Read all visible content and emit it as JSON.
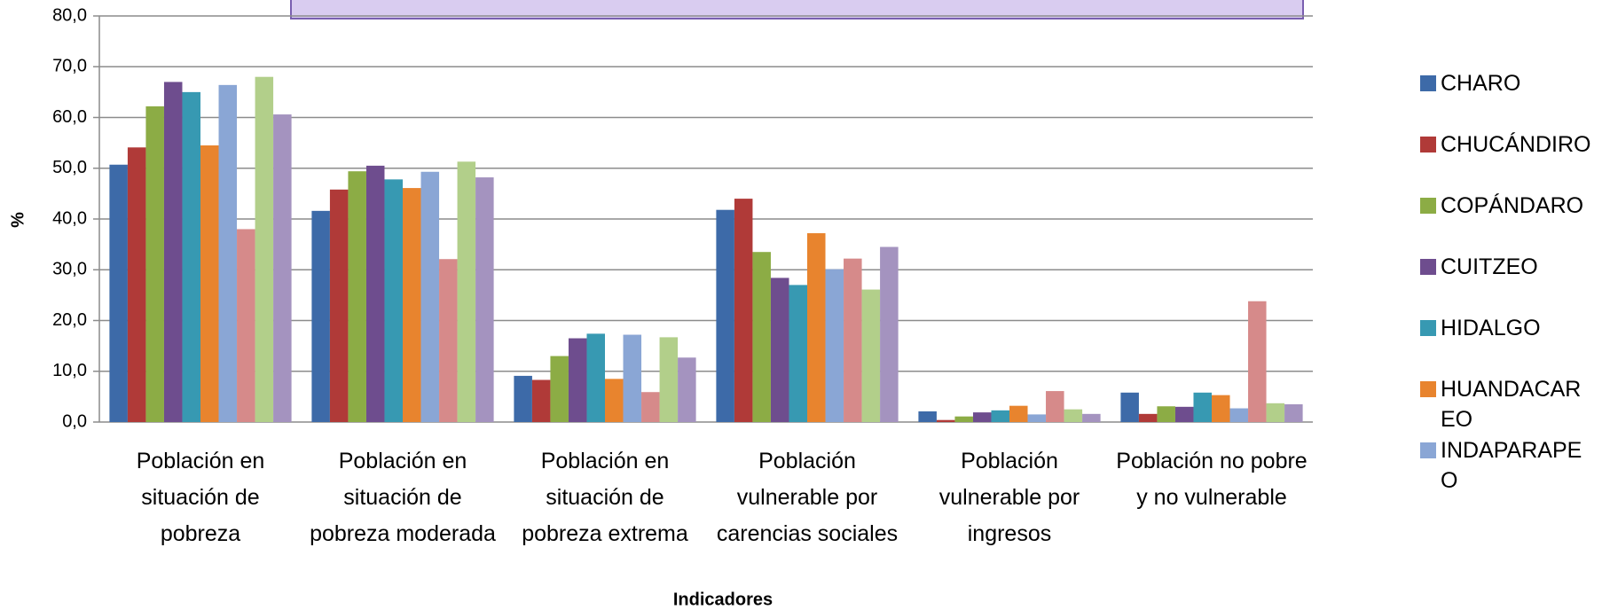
{
  "chart_data": {
    "type": "bar",
    "y_label": "%",
    "x_label": "Indicadores",
    "categories": [
      "Población en situación de pobreza",
      "Población en situación de pobreza moderada",
      "Población en situación de pobreza extrema",
      "Población vulnerable por carencias sociales",
      "Población vulnerable por ingresos",
      "Población no pobre y no vulnerable"
    ],
    "series": [
      {
        "name": "CHARO",
        "color": "#3d6aa8",
        "values": [
          50.7,
          41.6,
          9.1,
          41.8,
          2.1,
          5.8
        ]
      },
      {
        "name": "CHUCÁNDIRO",
        "color": "#b03a38",
        "values": [
          54.1,
          45.8,
          8.3,
          44.0,
          0.4,
          1.6
        ]
      },
      {
        "name": "COPÁNDARO",
        "color": "#8cac45",
        "values": [
          62.2,
          49.4,
          13.0,
          33.5,
          1.1,
          3.1
        ]
      },
      {
        "name": "CUITZEO",
        "color": "#6e4d8e",
        "values": [
          67.0,
          50.5,
          16.5,
          28.4,
          1.9,
          3.0
        ]
      },
      {
        "name": "HIDALGO",
        "color": "#3799b2",
        "values": [
          65.0,
          47.8,
          17.4,
          27.0,
          2.3,
          5.8
        ]
      },
      {
        "name": "HUANDACAREO",
        "color": "#e8842e",
        "values": [
          54.5,
          46.1,
          8.5,
          37.2,
          3.2,
          5.3
        ]
      },
      {
        "name": "INDAPARAPEO",
        "color": "#8aa6d5",
        "values": [
          66.4,
          49.3,
          17.2,
          30.1,
          1.5,
          2.7
        ]
      },
      {
        "color": "#d68a8a",
        "values": [
          38.0,
          32.1,
          5.9,
          32.2,
          6.1,
          23.8
        ]
      },
      {
        "color": "#b2cf8a",
        "values": [
          68.0,
          51.3,
          16.7,
          26.1,
          2.5,
          3.7
        ]
      },
      {
        "color": "#a493bf",
        "values": [
          60.6,
          48.2,
          12.7,
          34.5,
          1.6,
          3.5
        ]
      }
    ],
    "ylim": [
      0,
      80
    ],
    "yticks": [
      {
        "value": 0,
        "label": "0,0"
      },
      {
        "value": 10,
        "label": "10,0"
      },
      {
        "value": 20,
        "label": "20,0"
      },
      {
        "value": 30,
        "label": "30,0"
      },
      {
        "value": 40,
        "label": "40,0"
      },
      {
        "value": 50,
        "label": "50,0"
      },
      {
        "value": 60,
        "label": "60,0"
      },
      {
        "value": 70,
        "label": "70,0"
      },
      {
        "value": 80,
        "label": "80,0"
      }
    ],
    "grid": true
  }
}
